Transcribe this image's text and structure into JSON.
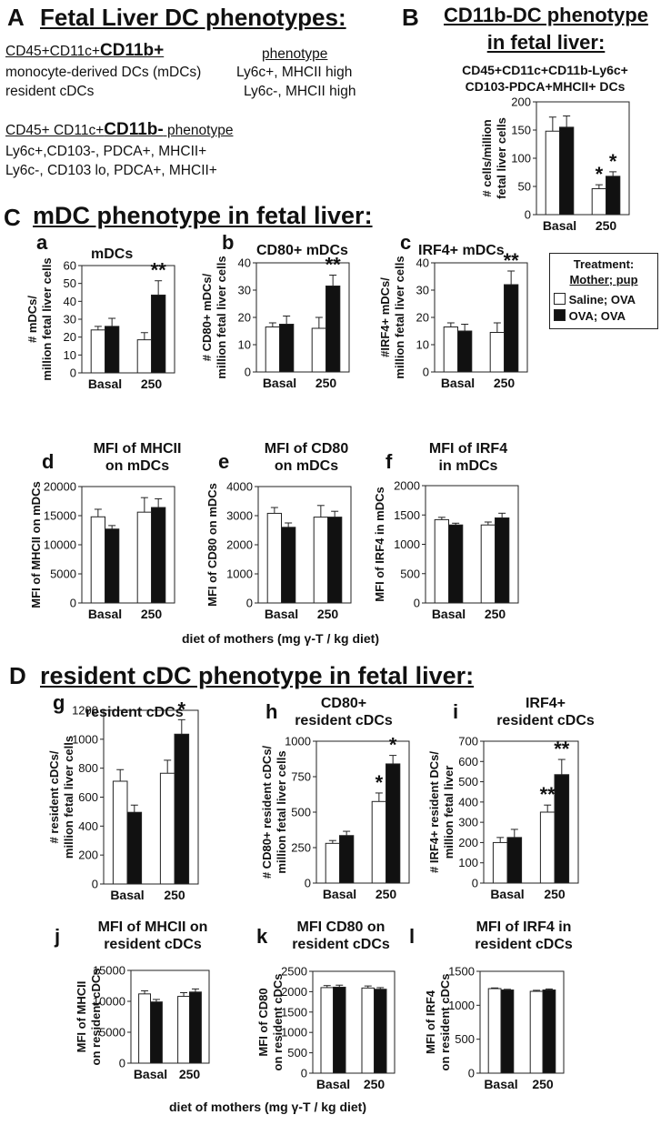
{
  "panelA": {
    "letter": "A",
    "title": "Fetal Liver DC phenotypes:",
    "cd11bpos_prefix": "CD45+CD11c+",
    "cd11bpos_big": "CD11b+",
    "phenotype_header": "phenotype",
    "row1_left": "monocyte-derived DCs (mDCs)",
    "row1_right": "Ly6c+, MHCII high",
    "row2_left": "resident cDCs",
    "row2_right": "Ly6c-, MHCII high",
    "cd11bneg_prefix": "CD45+ CD11c+",
    "cd11bneg_big": "CD11b-",
    "cd11bneg_suffix": " phenotype",
    "row3": "Ly6c+,CD103-, PDCA+, MHCII+",
    "row4": "Ly6c-, CD103 lo, PDCA+, MHCII+"
  },
  "panelB": {
    "letter": "B",
    "title_line1": "CD11b-DC phenotype",
    "title_line2": "in fetal liver:",
    "sub_line1": "CD45+CD11c+CD11b-Ly6c+",
    "sub_line2": "CD103-PDCA+MHCII+ DCs"
  },
  "panelC": {
    "letter": "C",
    "title": "mDC phenotype in fetal liver:",
    "xlabel": "diet of mothers (mg γ-T / kg diet)"
  },
  "panelD": {
    "letter": "D",
    "title": "resident cDC phenotype in fetal liver:",
    "xlabel": "diet of mothers (mg γ-T / kg diet)"
  },
  "legend": {
    "title_line1": "Treatment:",
    "title_line2": "Mother; pup",
    "items": [
      {
        "label": "Saline; OVA",
        "color": "#ffffff"
      },
      {
        "label": "OVA; OVA",
        "color": "#111111"
      }
    ]
  },
  "colors": {
    "saline": "#ffffff",
    "ova": "#111111",
    "stroke": "#222222"
  },
  "chart_data": [
    {
      "id": "B",
      "letter": "",
      "type": "bar",
      "title": "",
      "ylabel": [
        "# cells/million",
        "fetal liver cells"
      ],
      "categories": [
        "Basal",
        "250"
      ],
      "ylim": [
        0,
        200
      ],
      "yticks": [
        0,
        50,
        100,
        150,
        200
      ],
      "series": [
        {
          "name": "Saline; OVA",
          "values": [
            148,
            46
          ],
          "errors": [
            25,
            7
          ]
        },
        {
          "name": "OVA; OVA",
          "values": [
            155,
            68
          ],
          "errors": [
            20,
            8
          ]
        }
      ],
      "annotations": [
        {
          "cat": 1,
          "series": 0,
          "text": "*"
        },
        {
          "cat": 1,
          "series": 1,
          "text": "*"
        }
      ]
    },
    {
      "id": "a",
      "letter": "a",
      "type": "bar",
      "title": "mDCs",
      "ylabel": [
        "# mDCs/",
        "million fetal liver cells"
      ],
      "categories": [
        "Basal",
        "250"
      ],
      "ylim": [
        0,
        60
      ],
      "yticks": [
        0,
        10,
        20,
        30,
        40,
        50,
        60
      ],
      "series": [
        {
          "name": "Saline; OVA",
          "values": [
            24,
            18.5
          ],
          "errors": [
            2,
            4
          ]
        },
        {
          "name": "OVA; OVA",
          "values": [
            26,
            43.5
          ],
          "errors": [
            4.5,
            8
          ]
        }
      ],
      "annotations": [
        {
          "cat": 1,
          "series": 1,
          "text": "**"
        }
      ]
    },
    {
      "id": "b",
      "letter": "b",
      "type": "bar",
      "title": "CD80+ mDCs",
      "ylabel": [
        "# CD80+ mDCs/",
        "million fetal liver cells"
      ],
      "categories": [
        "Basal",
        "250"
      ],
      "ylim": [
        0,
        40
      ],
      "yticks": [
        0,
        10,
        20,
        30,
        40
      ],
      "series": [
        {
          "name": "Saline; OVA",
          "values": [
            16.5,
            16
          ],
          "errors": [
            1.5,
            4
          ]
        },
        {
          "name": "OVA; OVA",
          "values": [
            17.5,
            31.5
          ],
          "errors": [
            3,
            4
          ]
        }
      ],
      "annotations": [
        {
          "cat": 1,
          "series": 1,
          "text": "**"
        }
      ]
    },
    {
      "id": "c",
      "letter": "c",
      "type": "bar",
      "title": "IRF4+ mDCs",
      "ylabel": [
        "#IRF4+ mDCs/",
        "million fetal liver cells"
      ],
      "categories": [
        "Basal",
        "250"
      ],
      "ylim": [
        0,
        40
      ],
      "yticks": [
        0,
        10,
        20,
        30,
        40
      ],
      "series": [
        {
          "name": "Saline; OVA",
          "values": [
            16.5,
            14.5
          ],
          "errors": [
            1.5,
            3.5
          ]
        },
        {
          "name": "OVA; OVA",
          "values": [
            15,
            32
          ],
          "errors": [
            2.5,
            5
          ]
        }
      ],
      "annotations": [
        {
          "cat": 1,
          "series": 1,
          "text": "**"
        }
      ]
    },
    {
      "id": "d",
      "letter": "d",
      "type": "bar",
      "title": "MFI of MHCII on mDCs",
      "ylabel": [
        "MFI of MHCII on mDCs"
      ],
      "categories": [
        "Basal",
        "250"
      ],
      "ylim": [
        0,
        20000
      ],
      "yticks": [
        0,
        5000,
        10000,
        15000,
        20000
      ],
      "series": [
        {
          "name": "Saline; OVA",
          "values": [
            14800,
            15600
          ],
          "errors": [
            1300,
            2500
          ]
        },
        {
          "name": "OVA; OVA",
          "values": [
            12700,
            16400
          ],
          "errors": [
            600,
            1500
          ]
        }
      ],
      "annotations": []
    },
    {
      "id": "e",
      "letter": "e",
      "type": "bar",
      "title": "MFI of CD80 on mDCs",
      "ylabel": [
        "MFI of CD80 on mDCs"
      ],
      "categories": [
        "Basal",
        "250"
      ],
      "ylim": [
        0,
        4000
      ],
      "yticks": [
        0,
        1000,
        2000,
        3000,
        4000
      ],
      "series": [
        {
          "name": "Saline; OVA",
          "values": [
            3080,
            2950
          ],
          "errors": [
            200,
            400
          ]
        },
        {
          "name": "OVA; OVA",
          "values": [
            2600,
            2950
          ],
          "errors": [
            150,
            200
          ]
        }
      ],
      "annotations": []
    },
    {
      "id": "f",
      "letter": "f",
      "type": "bar",
      "title": "MFI of IRF4 in mDCs",
      "ylabel": [
        "MFI of IRF4 in mDCs"
      ],
      "categories": [
        "Basal",
        "250"
      ],
      "ylim": [
        0,
        2000
      ],
      "yticks": [
        0,
        500,
        1000,
        1500,
        2000
      ],
      "series": [
        {
          "name": "Saline; OVA",
          "values": [
            1420,
            1330
          ],
          "errors": [
            40,
            50
          ]
        },
        {
          "name": "OVA; OVA",
          "values": [
            1330,
            1450
          ],
          "errors": [
            30,
            80
          ]
        }
      ],
      "annotations": []
    },
    {
      "id": "g",
      "letter": "g",
      "type": "bar",
      "title": "resident cDCs",
      "ylabel": [
        "# resident cDCs/",
        "million fetal liver cells"
      ],
      "categories": [
        "Basal",
        "250"
      ],
      "ylim": [
        0,
        1200
      ],
      "yticks": [
        0,
        200,
        400,
        600,
        800,
        1000,
        1200
      ],
      "series": [
        {
          "name": "Saline; OVA",
          "values": [
            710,
            765
          ],
          "errors": [
            80,
            90
          ]
        },
        {
          "name": "OVA; OVA",
          "values": [
            495,
            1035
          ],
          "errors": [
            50,
            100
          ]
        }
      ],
      "annotations": [
        {
          "cat": 1,
          "series": 1,
          "text": "*"
        }
      ]
    },
    {
      "id": "h",
      "letter": "h",
      "type": "bar",
      "title": "CD80+ resident cDCs",
      "ylabel": [
        "# CD80+ resident cDCs/",
        "million fetal liver cells"
      ],
      "categories": [
        "Basal",
        "250"
      ],
      "ylim": [
        0,
        1000
      ],
      "yticks": [
        0,
        250,
        500,
        750,
        1000
      ],
      "series": [
        {
          "name": "Saline; OVA",
          "values": [
            280,
            575
          ],
          "errors": [
            20,
            60
          ]
        },
        {
          "name": "OVA; OVA",
          "values": [
            335,
            840
          ],
          "errors": [
            30,
            60
          ]
        }
      ],
      "annotations": [
        {
          "cat": 1,
          "series": 0,
          "text": "*"
        },
        {
          "cat": 1,
          "series": 1,
          "text": "*"
        }
      ]
    },
    {
      "id": "i",
      "letter": "i",
      "type": "bar",
      "title": "IRF4+ resident cDCs",
      "ylabel": [
        "# IRF4+ resident DCs/",
        "million fetal liver"
      ],
      "categories": [
        "Basal",
        "250"
      ],
      "ylim": [
        0,
        700
      ],
      "yticks": [
        0,
        100,
        200,
        300,
        400,
        500,
        600,
        700
      ],
      "series": [
        {
          "name": "Saline; OVA",
          "values": [
            200,
            350
          ],
          "errors": [
            25,
            35
          ]
        },
        {
          "name": "OVA; OVA",
          "values": [
            225,
            535
          ],
          "errors": [
            40,
            75
          ]
        }
      ],
      "annotations": [
        {
          "cat": 1,
          "series": 0,
          "text": "**"
        },
        {
          "cat": 1,
          "series": 1,
          "text": "**"
        }
      ]
    },
    {
      "id": "j",
      "letter": "j",
      "type": "bar",
      "title": "MFI of MHCII on resident cDCs",
      "ylabel": [
        "MFI of MHCII",
        "on resident cDCs"
      ],
      "categories": [
        "Basal",
        "250"
      ],
      "ylim": [
        0,
        15000
      ],
      "yticks": [
        0,
        5000,
        10000,
        15000
      ],
      "series": [
        {
          "name": "Saline; OVA",
          "values": [
            11200,
            10800
          ],
          "errors": [
            500,
            600
          ]
        },
        {
          "name": "OVA; OVA",
          "values": [
            9900,
            11500
          ],
          "errors": [
            400,
            500
          ]
        }
      ],
      "annotations": []
    },
    {
      "id": "k",
      "letter": "k",
      "type": "bar",
      "title": "MFI CD80 on resident cDCs",
      "ylabel": [
        "MFI of CD80",
        "on resident cDCs"
      ],
      "categories": [
        "Basal",
        "250"
      ],
      "ylim": [
        0,
        2500
      ],
      "yticks": [
        0,
        500,
        1000,
        1500,
        2000,
        2500
      ],
      "series": [
        {
          "name": "Saline; OVA",
          "values": [
            2100,
            2090
          ],
          "errors": [
            50,
            50
          ]
        },
        {
          "name": "OVA; OVA",
          "values": [
            2110,
            2060
          ],
          "errors": [
            50,
            40
          ]
        }
      ],
      "annotations": []
    },
    {
      "id": "l",
      "letter": "l",
      "type": "bar",
      "title": "MFI of IRF4 in resident cDCs",
      "ylabel": [
        "MFI of IRF4",
        "on resident  cDCs"
      ],
      "categories": [
        "Basal",
        "250"
      ],
      "ylim": [
        0,
        1500
      ],
      "yticks": [
        0,
        500,
        1000,
        1500
      ],
      "series": [
        {
          "name": "Saline; OVA",
          "values": [
            1245,
            1205
          ],
          "errors": [
            10,
            15
          ]
        },
        {
          "name": "OVA; OVA",
          "values": [
            1225,
            1225
          ],
          "errors": [
            10,
            15
          ]
        }
      ],
      "annotations": []
    }
  ]
}
